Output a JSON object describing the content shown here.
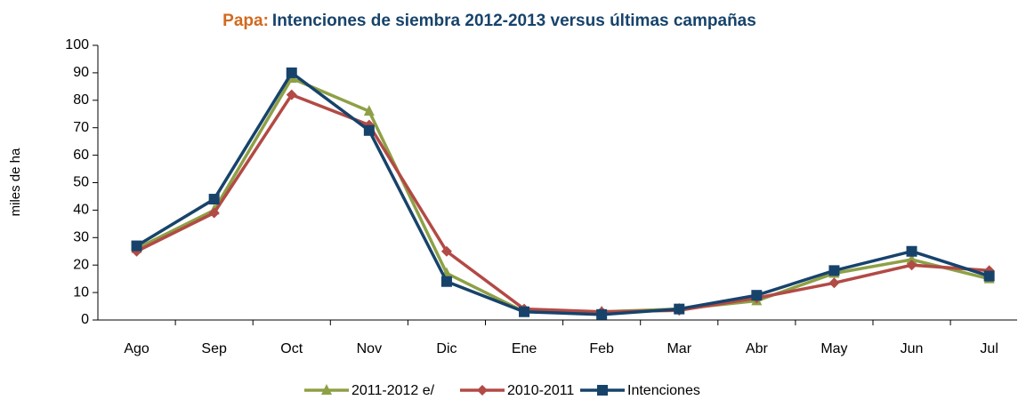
{
  "chart_data": {
    "type": "line",
    "title_prefix": "Papa:",
    "title": "Intenciones de siembra 2012-2013 versus últimas campañas",
    "y_label": "miles de ha",
    "categories": [
      "Ago",
      "Sep",
      "Oct",
      "Nov",
      "Dic",
      "Ene",
      "Feb",
      "Mar",
      "Abr",
      "May",
      "Jun",
      "Jul"
    ],
    "series": [
      {
        "name": "2011-2012 e/",
        "color": "#8ea046",
        "marker": "triangle",
        "values": [
          26,
          40,
          88,
          76,
          17,
          3,
          3,
          4,
          7,
          17,
          22,
          15
        ]
      },
      {
        "name": "2010-2011",
        "color": "#b24a45",
        "marker": "diamond",
        "values": [
          25,
          39,
          82,
          71,
          25,
          4,
          3,
          3.5,
          8,
          13.5,
          20,
          18
        ]
      },
      {
        "name": "Intenciones",
        "color": "#17436b",
        "marker": "square",
        "values": [
          27,
          44,
          90,
          69,
          14,
          3,
          2,
          4,
          9,
          18,
          25,
          16
        ]
      }
    ],
    "ylim": [
      0,
      100
    ],
    "yticks": [
      0,
      10,
      20,
      30,
      40,
      50,
      60,
      70,
      80,
      90,
      100
    ],
    "grid": false,
    "legend": "bottom"
  }
}
